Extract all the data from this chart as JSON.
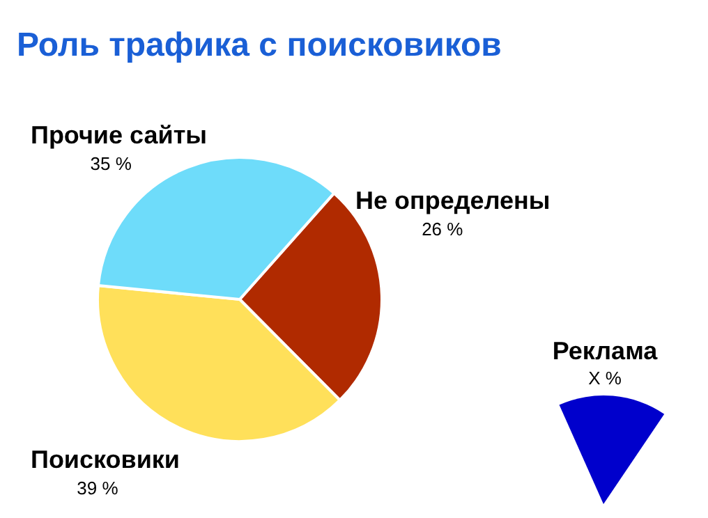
{
  "chart_data": {
    "type": "pie",
    "title": "Роль трафика с поисковиков",
    "categories": [
      "Не определены",
      "Поисковики",
      "Прочие сайты"
    ],
    "values": [
      26,
      39,
      35
    ],
    "colors": [
      "#b02a00",
      "#ffe05a",
      "#6edcfa"
    ],
    "value_labels": [
      "26 %",
      "39 %",
      "35 %"
    ],
    "annotations": [
      "Реклама",
      "X %"
    ]
  }
}
